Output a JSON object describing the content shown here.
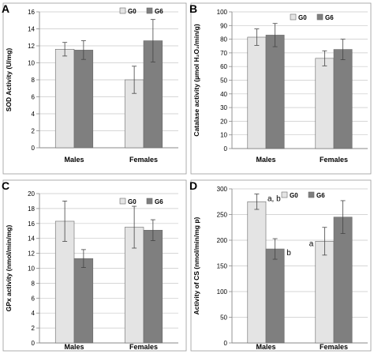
{
  "colors": {
    "g0": "#e4e4e4",
    "g6": "#7f7f7f",
    "axis": "#8a8a8a",
    "grid": "#c8c8c8",
    "text": "#000000"
  },
  "chart_data": [
    {
      "panel_label": "A",
      "type": "bar",
      "ylabel": "SOD Activity (U/mg)",
      "ylim": [
        0,
        16
      ],
      "yticks": [
        0,
        2,
        4,
        6,
        8,
        10,
        12,
        14,
        16
      ],
      "categories": [
        "Males",
        "Females"
      ],
      "legend": [
        "G0",
        "G6"
      ],
      "series": [
        {
          "name": "G0",
          "values": [
            11.6,
            8.0
          ],
          "errors": [
            0.8,
            1.6
          ]
        },
        {
          "name": "G6",
          "values": [
            11.5,
            12.6
          ],
          "errors": [
            1.1,
            2.5
          ]
        }
      ],
      "annotations": []
    },
    {
      "panel_label": "B",
      "type": "bar",
      "ylabel": "Catalase activity (µmol H₂O₂/min/g)",
      "ylim": [
        0,
        100
      ],
      "yticks": [
        0,
        10,
        20,
        30,
        40,
        50,
        60,
        70,
        80,
        90,
        100
      ],
      "categories": [
        "Males",
        "Females"
      ],
      "legend": [
        "G0",
        "G6"
      ],
      "series": [
        {
          "name": "G0",
          "values": [
            81.5,
            66.0
          ],
          "errors": [
            6.0,
            5.5
          ]
        },
        {
          "name": "G6",
          "values": [
            83.0,
            72.5
          ],
          "errors": [
            8.5,
            7.5
          ]
        }
      ],
      "annotations": []
    },
    {
      "panel_label": "C",
      "type": "bar",
      "ylabel": "GPx activity (nmol/min/mg)",
      "ylim": [
        0,
        20
      ],
      "yticks": [
        0,
        2,
        4,
        6,
        8,
        10,
        12,
        14,
        16,
        18,
        20
      ],
      "categories": [
        "Males",
        "Females"
      ],
      "legend": [
        "G0",
        "G6"
      ],
      "series": [
        {
          "name": "G0",
          "values": [
            16.3,
            15.5
          ],
          "errors": [
            2.7,
            2.8
          ]
        },
        {
          "name": "G6",
          "values": [
            11.3,
            15.1
          ],
          "errors": [
            1.2,
            1.4
          ]
        }
      ],
      "annotations": []
    },
    {
      "panel_label": "D",
      "type": "bar",
      "ylabel": "Activity of CS (nmol/min/mg p)",
      "ylim": [
        0,
        300
      ],
      "yticks": [
        0,
        50,
        100,
        150,
        200,
        250,
        300
      ],
      "categories": [
        "Males",
        "Females"
      ],
      "legend": [
        "G0",
        "G6"
      ],
      "series": [
        {
          "name": "G0",
          "values": [
            275,
            198
          ],
          "errors": [
            15,
            27
          ]
        },
        {
          "name": "G6",
          "values": [
            183,
            245
          ],
          "errors": [
            20,
            32
          ]
        }
      ],
      "annotations": [
        {
          "category": 0,
          "series": 0,
          "text": "a, b"
        },
        {
          "category": 0,
          "series": 1,
          "text": "b"
        },
        {
          "category": 1,
          "series": 0,
          "text": "a"
        }
      ]
    }
  ]
}
